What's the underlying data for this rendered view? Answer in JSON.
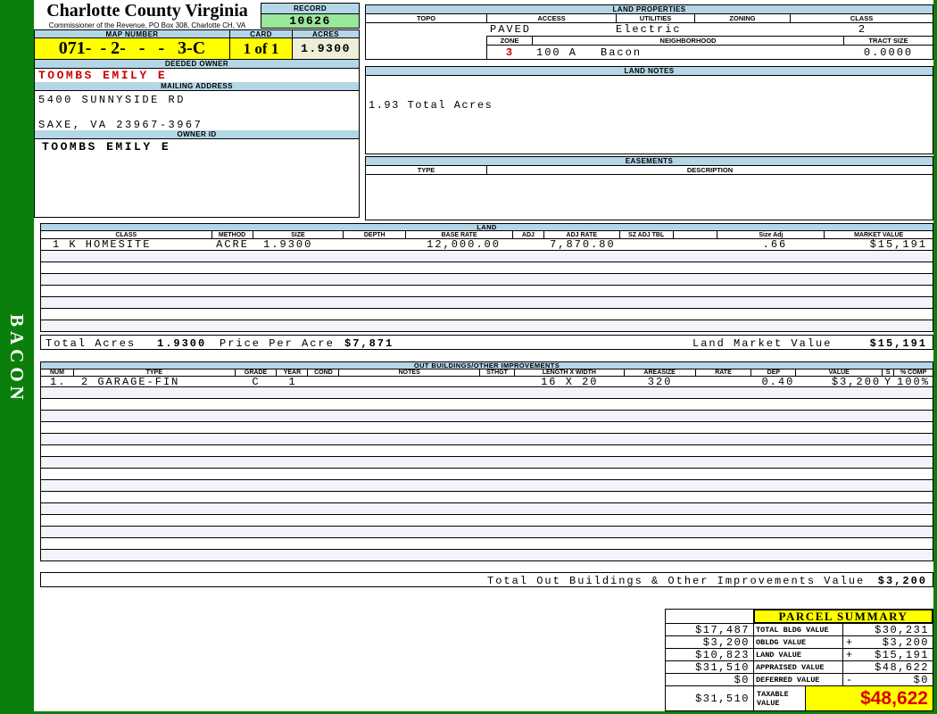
{
  "sidebar": {
    "district": "BACON"
  },
  "header": {
    "county": "Charlotte County Virginia",
    "commissioner_line": "Commissioner of the Revenue, PO Box 308, Charlotte CH, VA",
    "record_label": "RECORD",
    "record_value": "10626",
    "map_number_label": "MAP NUMBER",
    "map_number": "071-  - 2-   -   -   3-C",
    "card_label": "CARD",
    "card_value": "1 of 1",
    "acres_label": "ACRES",
    "acres_value": "1.9300"
  },
  "owner": {
    "deeded_owner_label": "DEEDED OWNER",
    "deeded_owner": "TOOMBS EMILY E",
    "mailing_address_label": "MAILING ADDRESS",
    "address_line1": "5400 SUNNYSIDE RD",
    "address_line2": "SAXE, VA 23967-3967",
    "owner_id_label": "OWNER ID",
    "owner_id": "TOOMBS EMILY E"
  },
  "land_properties": {
    "title": "LAND PROPERTIES",
    "headers": [
      "TOPO",
      "ACCESS",
      "UTILITIES",
      "ZONING",
      "CLASS"
    ],
    "topo": "",
    "access": "PAVED",
    "utilities": "Electric",
    "zoning": "",
    "class": "2",
    "zone_label": "ZONE",
    "zone": "3",
    "neighborhood_label": "NEIGHBORHOOD",
    "neighborhood_code": "100 A",
    "neighborhood_name": "Bacon",
    "tract_size_label": "TRACT SIZE",
    "tract_size": "0.0000"
  },
  "land_notes": {
    "title": "LAND NOTES",
    "note": "1.93 Total Acres"
  },
  "easements": {
    "title": "EASEMENTS",
    "type_label": "TYPE",
    "description_label": "DESCRIPTION"
  },
  "land": {
    "title": "LAND",
    "columns": [
      "CLASS",
      "METHOD",
      "SIZE",
      "DEPTH",
      "BASE RATE",
      "ADJ",
      "ADJ RATE",
      "SZ ADJ TBL",
      "",
      "Size Adj",
      "MARKET VALUE"
    ],
    "rows": [
      [
        "1 K HOMESITE",
        "ACRE",
        "1.9300",
        "",
        "12,000.00",
        "",
        "7,870.80",
        "",
        "",
        ".66",
        "$15,191"
      ]
    ],
    "empty_row_count": 7,
    "total_acres_label": "Total Acres",
    "total_acres": "1.9300",
    "price_per_acre_label": "Price Per Acre",
    "price_per_acre": "$7,871",
    "market_value_label": "Land Market Value",
    "market_value": "$15,191"
  },
  "out_buildings": {
    "title": "OUT BUILDINGS/OTHER IMPROVEMENTS",
    "columns": [
      "NUM",
      "TYPE",
      "GRADE",
      "YEAR",
      "COND",
      "NOTES",
      "STHGT",
      "LENGTH X WIDTH",
      "AREASIZE",
      "RATE",
      "DEP",
      "VALUE",
      "S",
      "% COMP"
    ],
    "rows": [
      [
        "1.",
        "2 GARAGE-FIN",
        "C",
        "1",
        "",
        "",
        "",
        "16 X 20",
        "320",
        "",
        "0.40",
        "$3,200",
        "Y",
        "100%"
      ]
    ],
    "empty_row_count": 15,
    "total_label": "Total Out Buildings & Other Improvements Value",
    "total_value": "$3,200"
  },
  "parcel_summary": {
    "title": "PARCEL SUMMARY",
    "rows": [
      {
        "prior": "$17,487",
        "label": "TOTAL BLDG VALUE",
        "op": "",
        "value": "$30,231"
      },
      {
        "prior": "$3,200",
        "label": "OBLDG VALUE",
        "op": "+",
        "value": "$3,200"
      },
      {
        "prior": "$10,823",
        "label": "LAND VALUE",
        "op": "+",
        "value": "$15,191"
      },
      {
        "prior": "$31,510",
        "label": "APPRAISED VALUE",
        "op": "",
        "value": "$48,622"
      },
      {
        "prior": "$0",
        "label": "DEFERRED VALUE",
        "op": "-",
        "value": "$0"
      }
    ],
    "taxable": {
      "prior": "$31,510",
      "label": "TAXABLE VALUE",
      "value": "$48,622"
    }
  },
  "colors": {
    "page_green": "#0B7F0B",
    "bar_blue": "#B4D7E7",
    "record_green": "#9AE69A",
    "acres_beige": "#EFEFD9",
    "highlight_yellow": "#FFFF00",
    "alert_red": "#CC0000",
    "taxable_red": "#D90000",
    "row_stripe": "#F3F3FB"
  }
}
